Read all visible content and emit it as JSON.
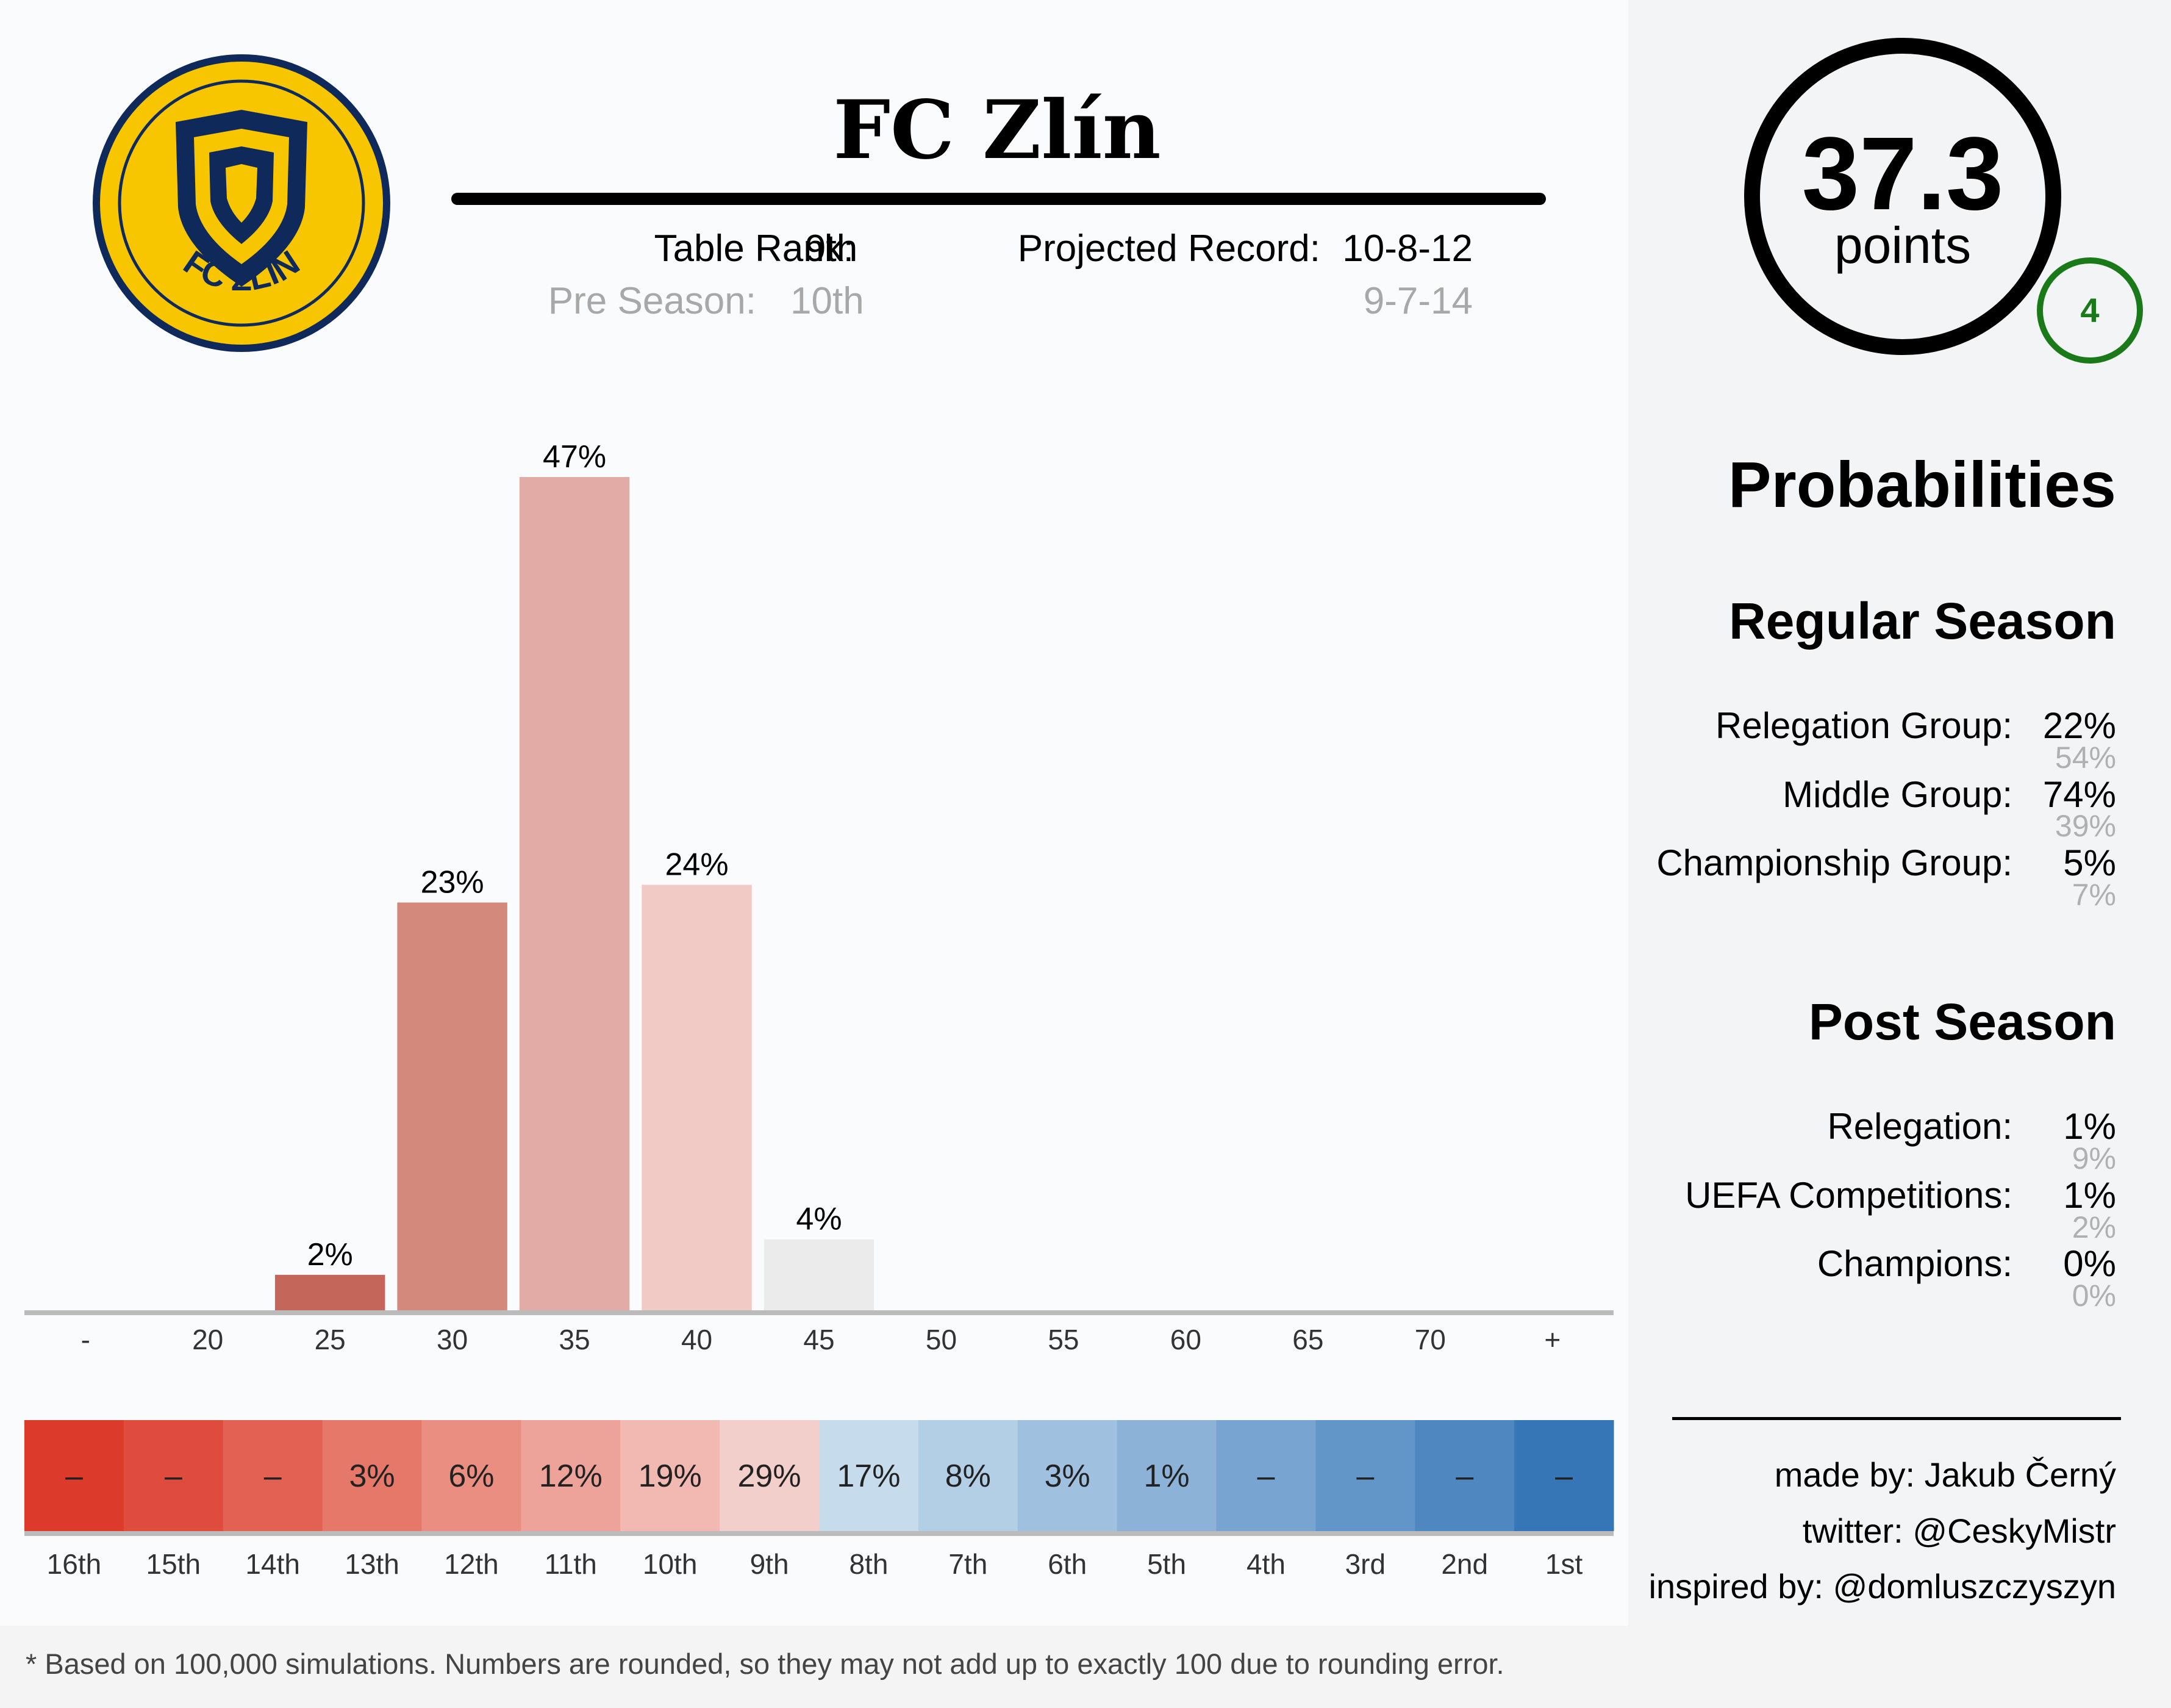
{
  "team": {
    "name": "FC Zlín",
    "logo_text": "FC ZLÍN",
    "logo_colors": {
      "fill": "#f7c600",
      "ring": "#0f2a5a"
    }
  },
  "header": {
    "table_rank_label": "Table Rank:",
    "table_rank": "9th",
    "pre_season_label": "Pre Season:",
    "pre_season_rank": "10th",
    "projected_record_label": "Projected Record:",
    "projected_record": "10-8-12",
    "pre_season_record": "9-7-14"
  },
  "points": {
    "value": "37.3",
    "label": "points",
    "badge": "4",
    "badge_color": "#1a7a1a"
  },
  "chart_data": [
    {
      "type": "bar",
      "title": "",
      "xlabel": "",
      "ylabel": "",
      "categories": [
        "-",
        "20",
        "25",
        "30",
        "35",
        "40",
        "45",
        "50",
        "55",
        "60",
        "65",
        "70",
        "+"
      ],
      "values": [
        0,
        0,
        2,
        23,
        47,
        24,
        4,
        0,
        0,
        0,
        0,
        0,
        0
      ],
      "labels": [
        "",
        "",
        "2%",
        "23%",
        "47%",
        "24%",
        "4%",
        "",
        "",
        "",
        "",
        "",
        ""
      ],
      "colors": [
        "#c05b4e",
        "#c05b4e",
        "#c4665a",
        "#d4897d",
        "#e2aba5",
        "#f1cac6",
        "#ebebeb",
        "#ebebeb",
        "#ebebeb",
        "#ebebeb",
        "#ebebeb",
        "#ebebeb",
        "#ebebeb"
      ],
      "ylim": [
        0,
        47
      ]
    },
    {
      "type": "heatmap",
      "categories": [
        "16th",
        "15th",
        "14th",
        "13th",
        "12th",
        "11th",
        "10th",
        "9th",
        "8th",
        "7th",
        "6th",
        "5th",
        "4th",
        "3rd",
        "2nd",
        "1st"
      ],
      "labels": [
        "–",
        "–",
        "–",
        "3%",
        "6%",
        "12%",
        "19%",
        "29%",
        "17%",
        "8%",
        "3%",
        "1%",
        "–",
        "–",
        "–",
        "–"
      ],
      "colors": [
        "#dc3b2c",
        "#df4c3e",
        "#e26152",
        "#e57868",
        "#e98e80",
        "#eda399",
        "#f1b9b2",
        "#f3cfcb",
        "#c6dbeb",
        "#b3cfe6",
        "#9fc0df",
        "#8cb2d8",
        "#77a4d0",
        "#6396c8",
        "#4f88c0",
        "#3676b6"
      ]
    }
  ],
  "probabilities": {
    "title": "Probabilities",
    "regular_title": "Regular Season",
    "regular": [
      {
        "label": "Relegation Group:",
        "value": "22%",
        "pre": "54%"
      },
      {
        "label": "Middle Group:",
        "value": "74%",
        "pre": "39%"
      },
      {
        "label": "Championship Group:",
        "value": "5%",
        "pre": "7%"
      }
    ],
    "post_title": "Post Season",
    "post": [
      {
        "label": "Relegation:",
        "value": "1%",
        "pre": "9%"
      },
      {
        "label": "UEFA Competitions:",
        "value": "1%",
        "pre": "2%"
      },
      {
        "label": "Champions:",
        "value": "0%",
        "pre": "0%"
      }
    ]
  },
  "credits": {
    "made_by": "made by: Jakub Černý",
    "twitter": "twitter: @CeskyMistr",
    "inspired": "inspired by: @domluszczyszyn"
  },
  "footnote": "* Based on 100,000 simulations. Numbers are rounded, so they may not add up to exactly 100 due to rounding error."
}
